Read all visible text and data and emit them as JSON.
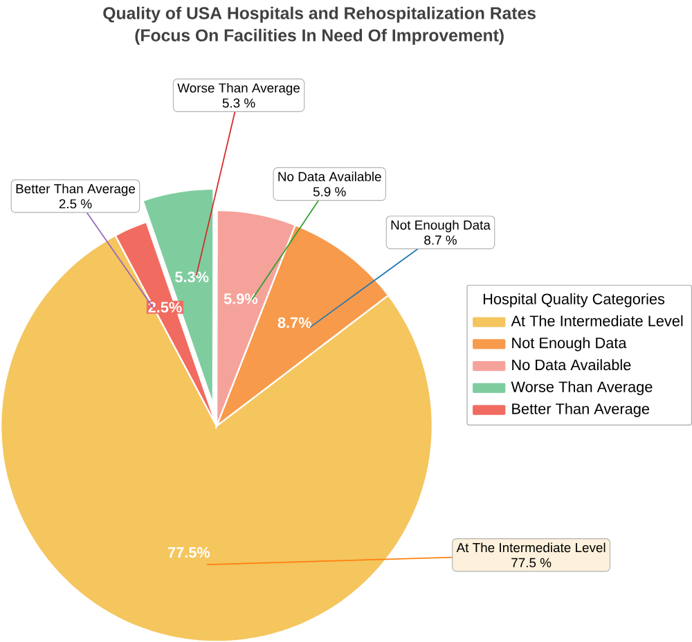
{
  "chart_data": {
    "type": "pie",
    "title": "Quality of USA Hospitals and Rehospitalization Rates",
    "subtitle": "(Focus On Facilities In Need Of Improvement)",
    "categories": [
      "At The Intermediate Level",
      "Not Enough Data",
      "No Data Available",
      "Worse Than Average",
      "Better Than Average"
    ],
    "values": [
      77.5,
      8.7,
      5.9,
      5.3,
      2.5
    ],
    "colors": [
      "#f5c55e",
      "#f79a4b",
      "#f5a29b",
      "#7fcd9f",
      "#f16b60"
    ],
    "value_labels": [
      "77.5%",
      "8.7%",
      "5.9%",
      "5.3%",
      "2.5%"
    ],
    "annotations": [
      "At The Intermediate Level",
      "77.5 %",
      "Not Enough Data",
      "8.7 %",
      "No Data Available",
      "5.9 %",
      "Worse Than Average",
      "5.3 %",
      "Better Than Average",
      "2.5 %"
    ],
    "legend_title": "Hospital Quality Categories",
    "legend": "right"
  }
}
